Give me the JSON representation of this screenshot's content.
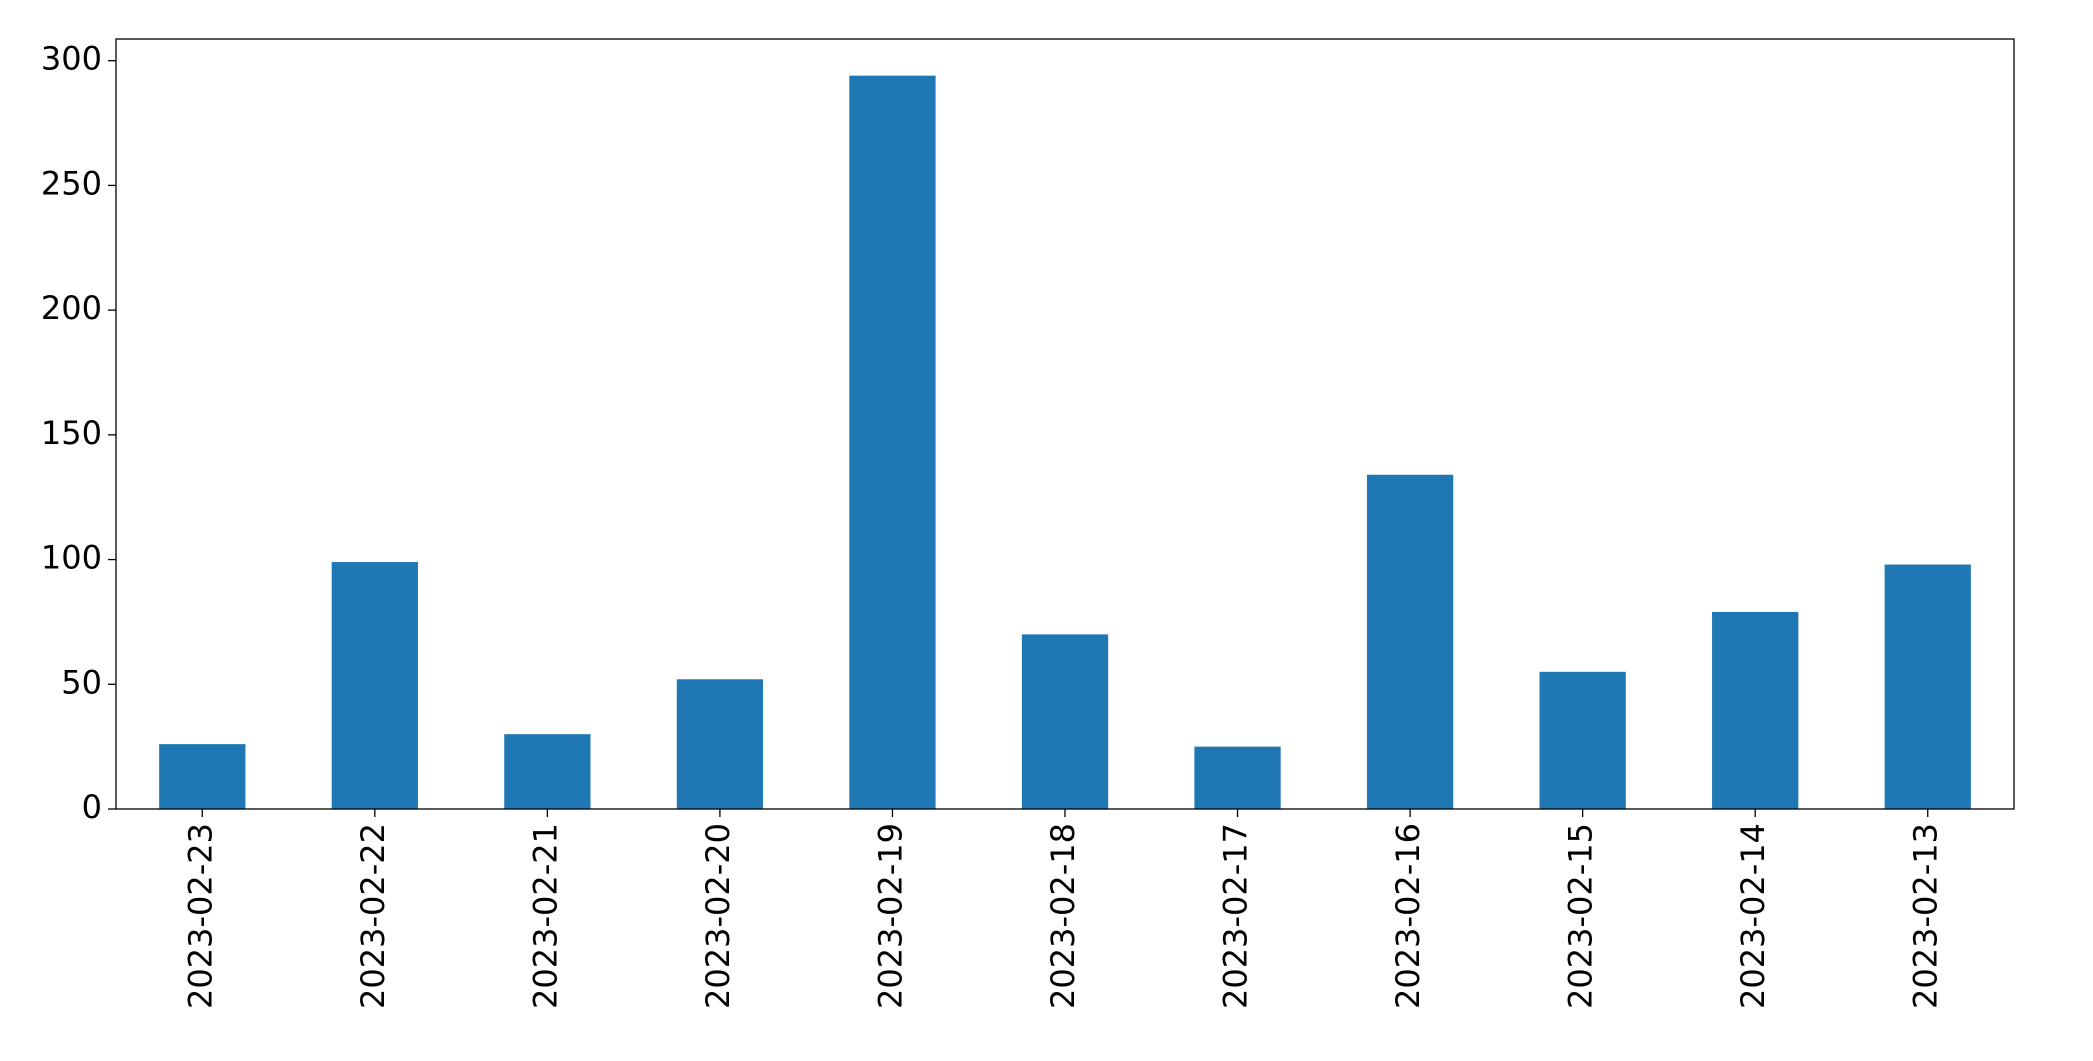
{
  "chart_data": {
    "type": "bar",
    "categories": [
      "2023-02-23",
      "2023-02-22",
      "2023-02-21",
      "2023-02-20",
      "2023-02-19",
      "2023-02-18",
      "2023-02-17",
      "2023-02-16",
      "2023-02-15",
      "2023-02-14",
      "2023-02-13"
    ],
    "values": [
      26,
      99,
      30,
      52,
      294,
      70,
      25,
      134,
      55,
      79,
      98
    ],
    "color": "#1f77b4",
    "ylim": [
      0,
      308.7
    ],
    "yticks": [
      0,
      50,
      100,
      150,
      200,
      250,
      300
    ],
    "grid": false
  }
}
